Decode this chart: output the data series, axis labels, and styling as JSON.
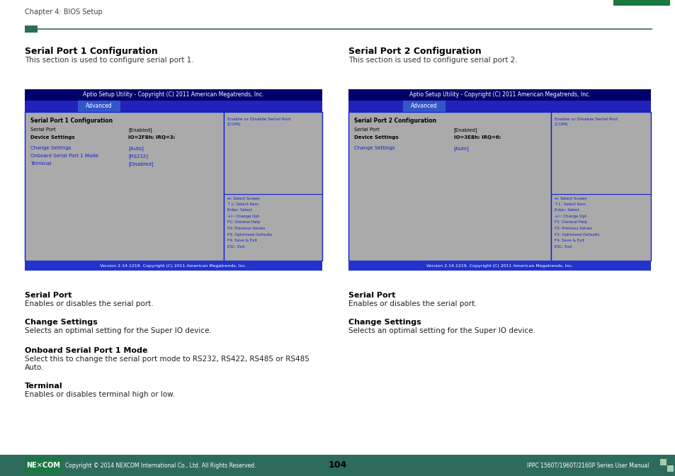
{
  "page_title": "Chapter 4: BIOS Setup",
  "page_number": "104",
  "footer_left": "Copyright © 2014 NEXCOM International Co., Ltd. All Rights Reserved.",
  "footer_right": "IPPC 1560T/1960T/2160P Series User Manual",
  "bg_color": "#ffffff",
  "header_bar_color": "#2d6b5e",
  "footer_bar_color": "#2d6b5e",
  "section1_title": "Serial Port 1 Configuration",
  "section1_desc": "This section is used to configure serial port 1.",
  "section2_title": "Serial Port 2 Configuration",
  "section2_desc": "This section is used to configure serial port 2.",
  "bios_header_bg": "#00006a",
  "bios_header_text": "Aptio Setup Utility - Copyright (C) 2011 American Megatrends, Inc.",
  "bios_tab_outer_bg": "#2222bb",
  "bios_tab_bg": "#3355cc",
  "bios_tab_text": "Advanced",
  "bios_body_bg": "#aaaaaa",
  "bios_footer_bg": "#2233cc",
  "bios_footer_text": "Version 2.14.1219. Copyright (C) 2011 American Megatrends, Inc.",
  "bios_border_color": "#1122cc",
  "bios1_title": "Serial Port 1 Configuration",
  "bios1_items": [
    [
      "Serial Port",
      "[Enabled]",
      false
    ],
    [
      "Device Settings",
      "IO=2F8h; IRQ=3;",
      true
    ]
  ],
  "bios1_items2": [
    [
      "Change Settings",
      "[Auto]"
    ],
    [
      "Onboard Serial Port 1 Mode",
      "[RS232]"
    ],
    [
      "Terminal",
      "[Disabled]"
    ]
  ],
  "bios1_help": "Enable or Disable Serial Port\n(COM)",
  "bios1_keys": [
    "↔: Select Screen",
    "↑↓: Select Item",
    "Enter: Select",
    "+/-: Change Opt.",
    "F1: General Help",
    "F2: Previous Values",
    "F3: Optimized Defaults",
    "F4: Save & Exit",
    "ESC: Exit"
  ],
  "bios2_title": "Serial Port 2 Configuration",
  "bios2_items": [
    [
      "Serial Port",
      "[Enabled]",
      false
    ],
    [
      "Device Settings",
      "IO=3E8h; IRQ=6;",
      true
    ]
  ],
  "bios2_items2": [
    [
      "Change Settings",
      "[Auto]"
    ]
  ],
  "bios2_help": "Enable or Disable Serial Port\n(COM)",
  "bios2_keys": [
    "↔: Select Screen",
    "↑↓: Select Item",
    "Enter: Select",
    "+/-: Change Opt.",
    "F1: General Help",
    "F2: Previous Values",
    "F3: Optimized Defaults",
    "F4: Save & Exit",
    "ESC: Exit"
  ],
  "sub1_title": "Serial Port",
  "sub1_desc": "Enables or disables the serial port.",
  "sub2_title": "Change Settings",
  "sub2_desc": "Selects an optimal setting for the Super IO device.",
  "sub3_title": "Onboard Serial Port 1 Mode",
  "sub3_desc_line1": "Select this to change the serial port mode to RS232, RS422, RS485 or RS485",
  "sub3_desc_line2": "Auto.",
  "sub4_title": "Terminal",
  "sub4_desc": "Enables or disables terminal high or low.",
  "sub5_title": "Serial Port",
  "sub5_desc": "Enables or disables the serial port.",
  "sub6_title": "Change Settings",
  "sub6_desc": "Selects an optimal setting for the Super IO device.",
  "nexcom_green": "#1a7840"
}
